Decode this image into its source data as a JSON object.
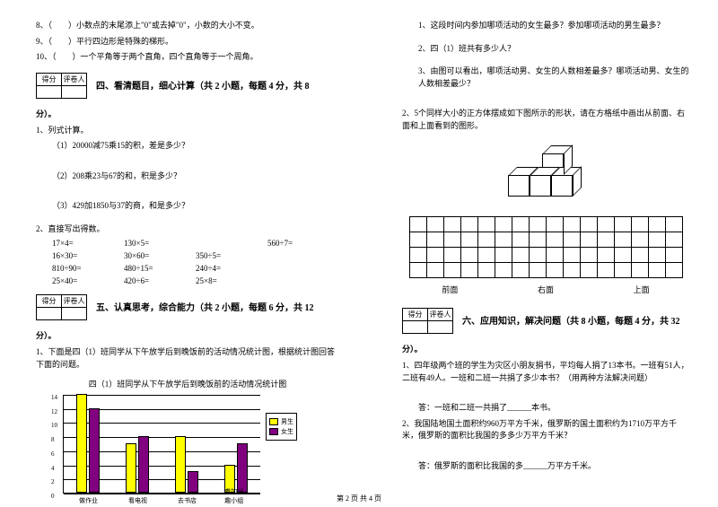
{
  "left": {
    "q8": "8、（　　）小数点的末尾添上\"0\"或去掉\"0\"，小数的大小不变。",
    "q9": "9、（　　）平行四边形是特殊的梯形。",
    "q10": "10、（　　）一个平角等于两个直角，四个直角等于一个周角。",
    "score": {
      "c1": "得分",
      "c2": "评卷人"
    },
    "sec4_title": "四、看清题目，细心计算（共 2 小题，每题 4 分，共 8",
    "sec4_title2": "分）。",
    "p1": "1、列式计算。",
    "p1_1": "（1）20000减75乘15的积，差是多少？",
    "p1_2": "（2）208乘23与67的和，积是多少？",
    "p1_3": "（3）429加1850与37的商，和是多少？",
    "p2": "2、直接写出得数。",
    "calc": [
      [
        "17×4=",
        "130×5=",
        "",
        "560÷7="
      ],
      [
        "16×30=",
        "30×60=",
        "350÷5=",
        ""
      ],
      [
        "810÷90=",
        "480÷15=",
        "240÷4=",
        ""
      ],
      [
        "25×40=",
        "420÷6=",
        "25×8=",
        ""
      ]
    ],
    "sec5_title": "五、认真思考，综合能力（共 2 小题，每题 6 分，共 12",
    "sec5_title2": "分）。",
    "p5_1": "1、下面是四（1）班同学从下午放学后到晚饭前的活动情况统计图，根据统计图回答下面的问题。",
    "chart_title": "四（1）班同学从下午放学后到晚饭前的活动情况统计图",
    "chart": {
      "ymax": 14,
      "ystep": 2,
      "categories": [
        "做作业",
        "看电视",
        "去书店",
        "参加兴趣小组"
      ],
      "male": [
        14,
        7,
        8,
        4
      ],
      "female": [
        12,
        8,
        3,
        7
      ],
      "male_color": "#ffff00",
      "female_color": "#800080",
      "legend": {
        "m": "男生",
        "f": "女生"
      }
    }
  },
  "right": {
    "q1": "1、这段时间内参加哪项活动的女生最多？参加哪项活动的男生最多？",
    "q2": "2、四（1）班共有多少人？",
    "q3": "3、由图可以看出，哪项活动男、女生的人数相差最多？哪项活动男、女生的人数相差最少？",
    "q5_2": "2、5个同样大小的正方体摆成如下图所示的形状，请在方格纸中画出从前面、右面和上面看到的图形。",
    "grid_labels": {
      "front": "前面",
      "right": "右面",
      "top": "上面"
    },
    "score": {
      "c1": "得分",
      "c2": "评卷人"
    },
    "sec6_title": "六、应用知识，解决问题（共 8 小题，每题 4 分，共 32",
    "sec6_title2": "分）。",
    "p6_1": "1、四年级两个班的学生为灾区小朋友捐书，平均每人捐了13本书。一班有51人，二班有49人。一班和二班一共捐了多少本书？（用两种方法解决问题）",
    "ans1": "答：一班和二班一共捐了______本书。",
    "p6_2": "2、我国陆地国土面积约960万平方千米，俄罗斯的国土面积约为1710万平方千米，俄罗斯的面积比我国的多多少万平方千米？",
    "ans2": "答：俄罗斯的面积比我国的多______万平方千米。"
  },
  "footer": "第 2 页 共 4 页"
}
